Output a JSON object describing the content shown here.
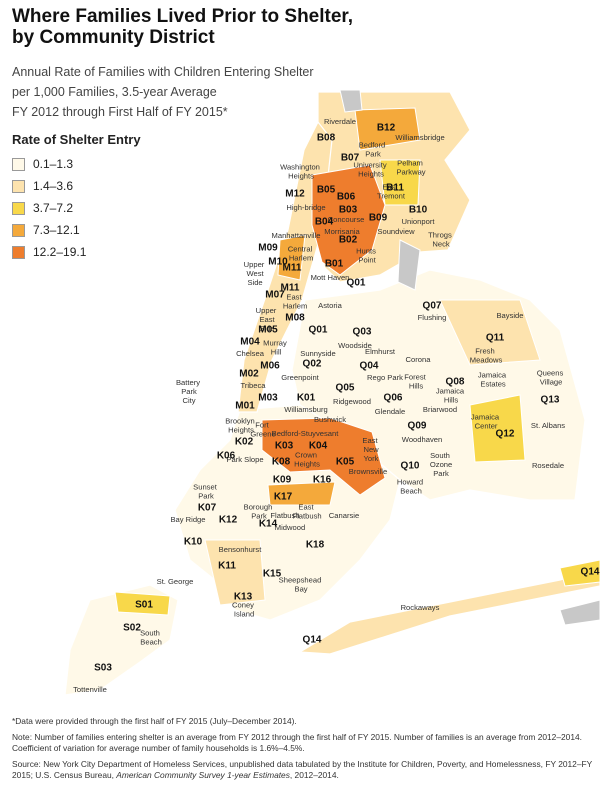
{
  "title_lines": [
    "Where Families Lived Prior to Shelter,",
    "by Community District"
  ],
  "subtitle_lines": [
    "Annual Rate of Families with Children Entering Shelter",
    "per 1,000 Families, 3.5-year Average",
    "FY 2012 through First Half of FY 2015*"
  ],
  "legend": {
    "title": "Rate of Shelter Entry",
    "items": [
      {
        "label": "0.1–1.3",
        "color": "#fff9e8"
      },
      {
        "label": "1.4–3.6",
        "color": "#fde3ae"
      },
      {
        "label": "3.7–7.2",
        "color": "#f8d84a"
      },
      {
        "label": "7.3–12.1",
        "color": "#f4a93b"
      },
      {
        "label": "12.2–19.1",
        "color": "#ee7d2d"
      }
    ]
  },
  "districts": [
    "B08",
    "B12",
    "B07",
    "B11",
    "B05",
    "B06",
    "B03",
    "M12",
    "B10",
    "B09",
    "B04",
    "B02",
    "M09",
    "M10",
    "B01",
    "M11",
    "M11",
    "Q01",
    "M07",
    "M08",
    "M05",
    "Q01",
    "Q03",
    "Q07",
    "Q11",
    "M04",
    "M06",
    "Q02",
    "Q04",
    "M02",
    "M03",
    "Q05",
    "Q06",
    "Q08",
    "Q13",
    "M01",
    "K01",
    "K02",
    "Q09",
    "Q12",
    "K06",
    "K03",
    "K04",
    "K05",
    "K08",
    "Q10",
    "K09",
    "K16",
    "K17",
    "K07",
    "K12",
    "K14",
    "K18",
    "K10",
    "K11",
    "K15",
    "Q14",
    "S01",
    "K13",
    "Q14",
    "S02",
    "S03"
  ],
  "places": [
    "Riverdale",
    "Williamsbridge",
    "Bedford Park",
    "University Heights",
    "Pelham Parkway",
    "Washington Heights",
    "East Tremont",
    "High-bridge",
    "Concourse",
    "Unionport",
    "Morrisania",
    "Soundview",
    "Throgs Neck",
    "Manhattanville",
    "Central Harlem",
    "Mott Haven",
    "Hunts Point",
    "Upper West Side",
    "East Harlem",
    "Upper East Side",
    "Astoria",
    "Flushing",
    "Bayside",
    "Woodside",
    "Fresh Meadows",
    "Sunnyside",
    "Elmhurst",
    "Corona",
    "Murray Hill",
    "Chelsea",
    "Greenpoint",
    "Rego Park",
    "Forest Hills",
    "Jamaica Estates",
    "Queens Village",
    "Tribeca",
    "Battery Park City",
    "Williamsburg",
    "Ridgewood",
    "Glendale",
    "Jamaica Hills",
    "Bushwick",
    "Briarwood",
    "Brooklyn Heights",
    "Fort Greene",
    "Bedford-Stuyvesant",
    "Woodhaven",
    "Jamaica Center",
    "St. Albans",
    "Park Slope",
    "Crown Heights",
    "East New York",
    "Brownsville",
    "South Ozone Park",
    "Howard Beach",
    "Rosedale",
    "Sunset Park",
    "East Flatbush",
    "Flatbush",
    "Borough Park",
    "Bay Ridge",
    "Midwood",
    "Canarsie",
    "Bensonhurst",
    "St. George",
    "Sheepshead Bay",
    "Coney Island",
    "Rockaways",
    "South Beach",
    "Tottenville"
  ],
  "notes": {
    "data_note": "*Data were provided through the first half of FY 2015 (July–December 2014).",
    "note": "Note: Number of families entering shelter is an average from FY 2012 through the first half of FY 2015. Number of families is an average from 2012–2014. Coefficient of variation for average number of family households is 1.6%–4.5%.",
    "source": [
      "Source: New York City Department of Homeless Services, unpublished data tabulated by the Institute for Children, Poverty, and Homelessness, FY 2012–FY 2015; U.S. Census Bureau, ",
      "American Community Survey 1-year Estimates",
      ", 2012–2014."
    ]
  }
}
